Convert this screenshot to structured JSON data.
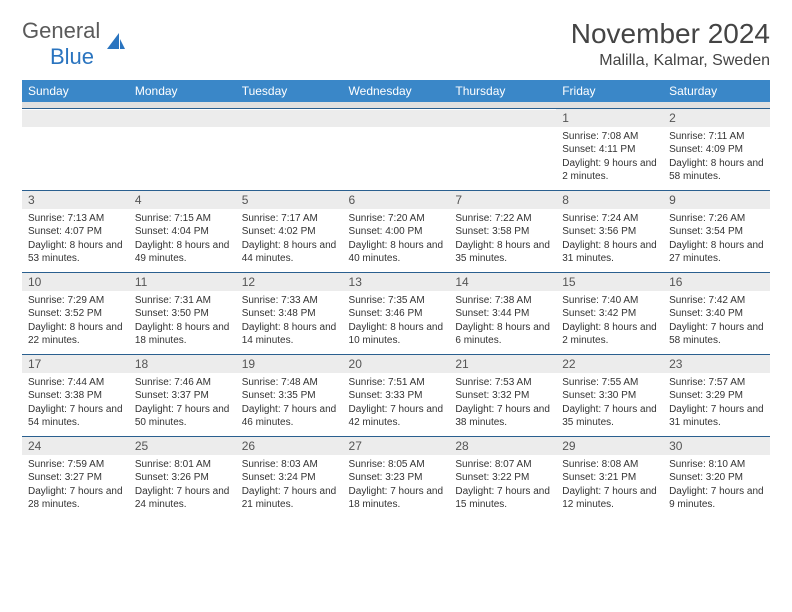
{
  "logo": {
    "text1": "General",
    "text2": "Blue"
  },
  "title": "November 2024",
  "location": "Malilla, Kalmar, Sweden",
  "colors": {
    "header_bg": "#3a87c8",
    "header_text": "#ffffff",
    "daynum_bg": "#ececec",
    "row_border": "#2a5f8f",
    "logo_gray": "#5a5a5a",
    "logo_blue": "#2a74bf"
  },
  "weekdays": [
    "Sunday",
    "Monday",
    "Tuesday",
    "Wednesday",
    "Thursday",
    "Friday",
    "Saturday"
  ],
  "weeks": [
    [
      null,
      null,
      null,
      null,
      null,
      {
        "n": "1",
        "sr": "7:08 AM",
        "ss": "4:11 PM",
        "dl": "9 hours and 2 minutes."
      },
      {
        "n": "2",
        "sr": "7:11 AM",
        "ss": "4:09 PM",
        "dl": "8 hours and 58 minutes."
      }
    ],
    [
      {
        "n": "3",
        "sr": "7:13 AM",
        "ss": "4:07 PM",
        "dl": "8 hours and 53 minutes."
      },
      {
        "n": "4",
        "sr": "7:15 AM",
        "ss": "4:04 PM",
        "dl": "8 hours and 49 minutes."
      },
      {
        "n": "5",
        "sr": "7:17 AM",
        "ss": "4:02 PM",
        "dl": "8 hours and 44 minutes."
      },
      {
        "n": "6",
        "sr": "7:20 AM",
        "ss": "4:00 PM",
        "dl": "8 hours and 40 minutes."
      },
      {
        "n": "7",
        "sr": "7:22 AM",
        "ss": "3:58 PM",
        "dl": "8 hours and 35 minutes."
      },
      {
        "n": "8",
        "sr": "7:24 AM",
        "ss": "3:56 PM",
        "dl": "8 hours and 31 minutes."
      },
      {
        "n": "9",
        "sr": "7:26 AM",
        "ss": "3:54 PM",
        "dl": "8 hours and 27 minutes."
      }
    ],
    [
      {
        "n": "10",
        "sr": "7:29 AM",
        "ss": "3:52 PM",
        "dl": "8 hours and 22 minutes."
      },
      {
        "n": "11",
        "sr": "7:31 AM",
        "ss": "3:50 PM",
        "dl": "8 hours and 18 minutes."
      },
      {
        "n": "12",
        "sr": "7:33 AM",
        "ss": "3:48 PM",
        "dl": "8 hours and 14 minutes."
      },
      {
        "n": "13",
        "sr": "7:35 AM",
        "ss": "3:46 PM",
        "dl": "8 hours and 10 minutes."
      },
      {
        "n": "14",
        "sr": "7:38 AM",
        "ss": "3:44 PM",
        "dl": "8 hours and 6 minutes."
      },
      {
        "n": "15",
        "sr": "7:40 AM",
        "ss": "3:42 PM",
        "dl": "8 hours and 2 minutes."
      },
      {
        "n": "16",
        "sr": "7:42 AM",
        "ss": "3:40 PM",
        "dl": "7 hours and 58 minutes."
      }
    ],
    [
      {
        "n": "17",
        "sr": "7:44 AM",
        "ss": "3:38 PM",
        "dl": "7 hours and 54 minutes."
      },
      {
        "n": "18",
        "sr": "7:46 AM",
        "ss": "3:37 PM",
        "dl": "7 hours and 50 minutes."
      },
      {
        "n": "19",
        "sr": "7:48 AM",
        "ss": "3:35 PM",
        "dl": "7 hours and 46 minutes."
      },
      {
        "n": "20",
        "sr": "7:51 AM",
        "ss": "3:33 PM",
        "dl": "7 hours and 42 minutes."
      },
      {
        "n": "21",
        "sr": "7:53 AM",
        "ss": "3:32 PM",
        "dl": "7 hours and 38 minutes."
      },
      {
        "n": "22",
        "sr": "7:55 AM",
        "ss": "3:30 PM",
        "dl": "7 hours and 35 minutes."
      },
      {
        "n": "23",
        "sr": "7:57 AM",
        "ss": "3:29 PM",
        "dl": "7 hours and 31 minutes."
      }
    ],
    [
      {
        "n": "24",
        "sr": "7:59 AM",
        "ss": "3:27 PM",
        "dl": "7 hours and 28 minutes."
      },
      {
        "n": "25",
        "sr": "8:01 AM",
        "ss": "3:26 PM",
        "dl": "7 hours and 24 minutes."
      },
      {
        "n": "26",
        "sr": "8:03 AM",
        "ss": "3:24 PM",
        "dl": "7 hours and 21 minutes."
      },
      {
        "n": "27",
        "sr": "8:05 AM",
        "ss": "3:23 PM",
        "dl": "7 hours and 18 minutes."
      },
      {
        "n": "28",
        "sr": "8:07 AM",
        "ss": "3:22 PM",
        "dl": "7 hours and 15 minutes."
      },
      {
        "n": "29",
        "sr": "8:08 AM",
        "ss": "3:21 PM",
        "dl": "7 hours and 12 minutes."
      },
      {
        "n": "30",
        "sr": "8:10 AM",
        "ss": "3:20 PM",
        "dl": "7 hours and 9 minutes."
      }
    ]
  ],
  "labels": {
    "sunrise": "Sunrise: ",
    "sunset": "Sunset: ",
    "daylight": "Daylight: "
  }
}
